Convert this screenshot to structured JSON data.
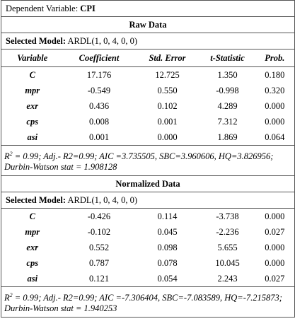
{
  "header": {
    "label": "Dependent Variable:",
    "value": "CPI"
  },
  "sections": [
    {
      "title": "Raw Data",
      "model_label": "Selected Model:",
      "model": "ARDL(1, 0, 4, 0, 0)",
      "columns": [
        "Variable",
        "Coefficient",
        "Std. Error",
        "t-Statistic",
        "Prob."
      ],
      "rows": [
        [
          "C",
          "17.176",
          "12.725",
          "1.350",
          "0.180"
        ],
        [
          "mpr",
          "-0.549",
          "0.550",
          "-0.998",
          "0.320"
        ],
        [
          "exr",
          "0.436",
          "0.102",
          "4.289",
          "0.000"
        ],
        [
          "cps",
          "0.008",
          "0.001",
          "7.312",
          "0.000"
        ],
        [
          "asi",
          "0.001",
          "0.000",
          "1.869",
          "0.064"
        ]
      ],
      "footnote": {
        "r": "R",
        "sup": "2",
        "text": "= 0.99; Adj.- R2=0.99; AIC =3.735505, SBC=3.960606, HQ=3.826956; Durbin-Watson stat = 1.908128"
      }
    },
    {
      "title": "Normalized Data",
      "model_label": "Selected Model:",
      "model": "ARDL(1, 0, 4, 0, 0)",
      "rows": [
        [
          "C",
          "-0.426",
          "0.114",
          "-3.738",
          "0.000"
        ],
        [
          "mpr",
          "-0.102",
          "0.045",
          "-2.236",
          "0.027"
        ],
        [
          "exr",
          "0.552",
          "0.098",
          "5.655",
          "0.000"
        ],
        [
          "cps",
          "0.787",
          "0.078",
          "10.045",
          "0.000"
        ],
        [
          "asi",
          "0.121",
          "0.054",
          "2.243",
          "0.027"
        ]
      ],
      "footnote": {
        "r": "R",
        "sup": "2",
        "text": "= 0.99; Adj.- R2=0.99; AIC =-7.306404, SBC=-7.083589, HQ=-7.215873; Durbin-Watson stat = 1.940253"
      }
    }
  ]
}
